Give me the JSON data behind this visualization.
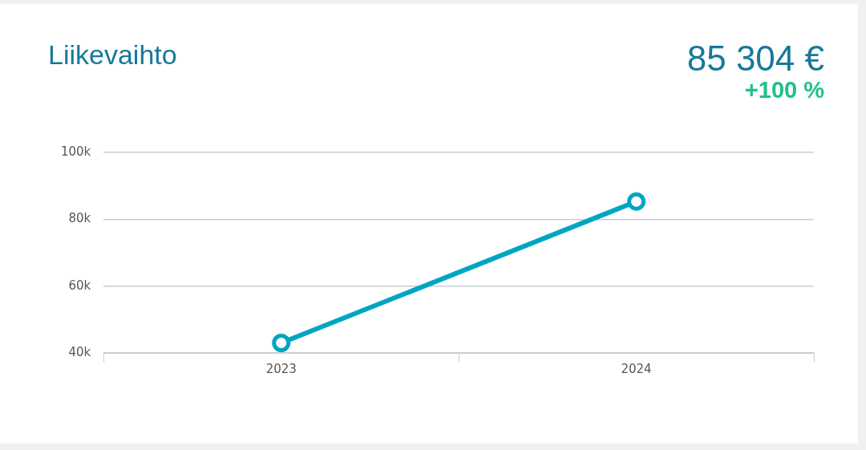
{
  "chart_data": {
    "type": "line",
    "title": "Liikevaihto",
    "annotations": [
      "85 304 €",
      "+100 %"
    ],
    "categories": [
      "2023",
      "2024"
    ],
    "series": [
      {
        "color": "#00a5c4",
        "values": [
          43000,
          85304
        ]
      }
    ],
    "ylim": [
      40000,
      100000
    ],
    "yticks": [
      {
        "value": 40000,
        "label": "40k"
      },
      {
        "value": 60000,
        "label": "60k"
      },
      {
        "value": 80000,
        "label": "80k"
      },
      {
        "value": 100000,
        "label": "100k"
      }
    ],
    "grid": "y",
    "legend": false,
    "marker": "circle",
    "line_style": "solid"
  }
}
